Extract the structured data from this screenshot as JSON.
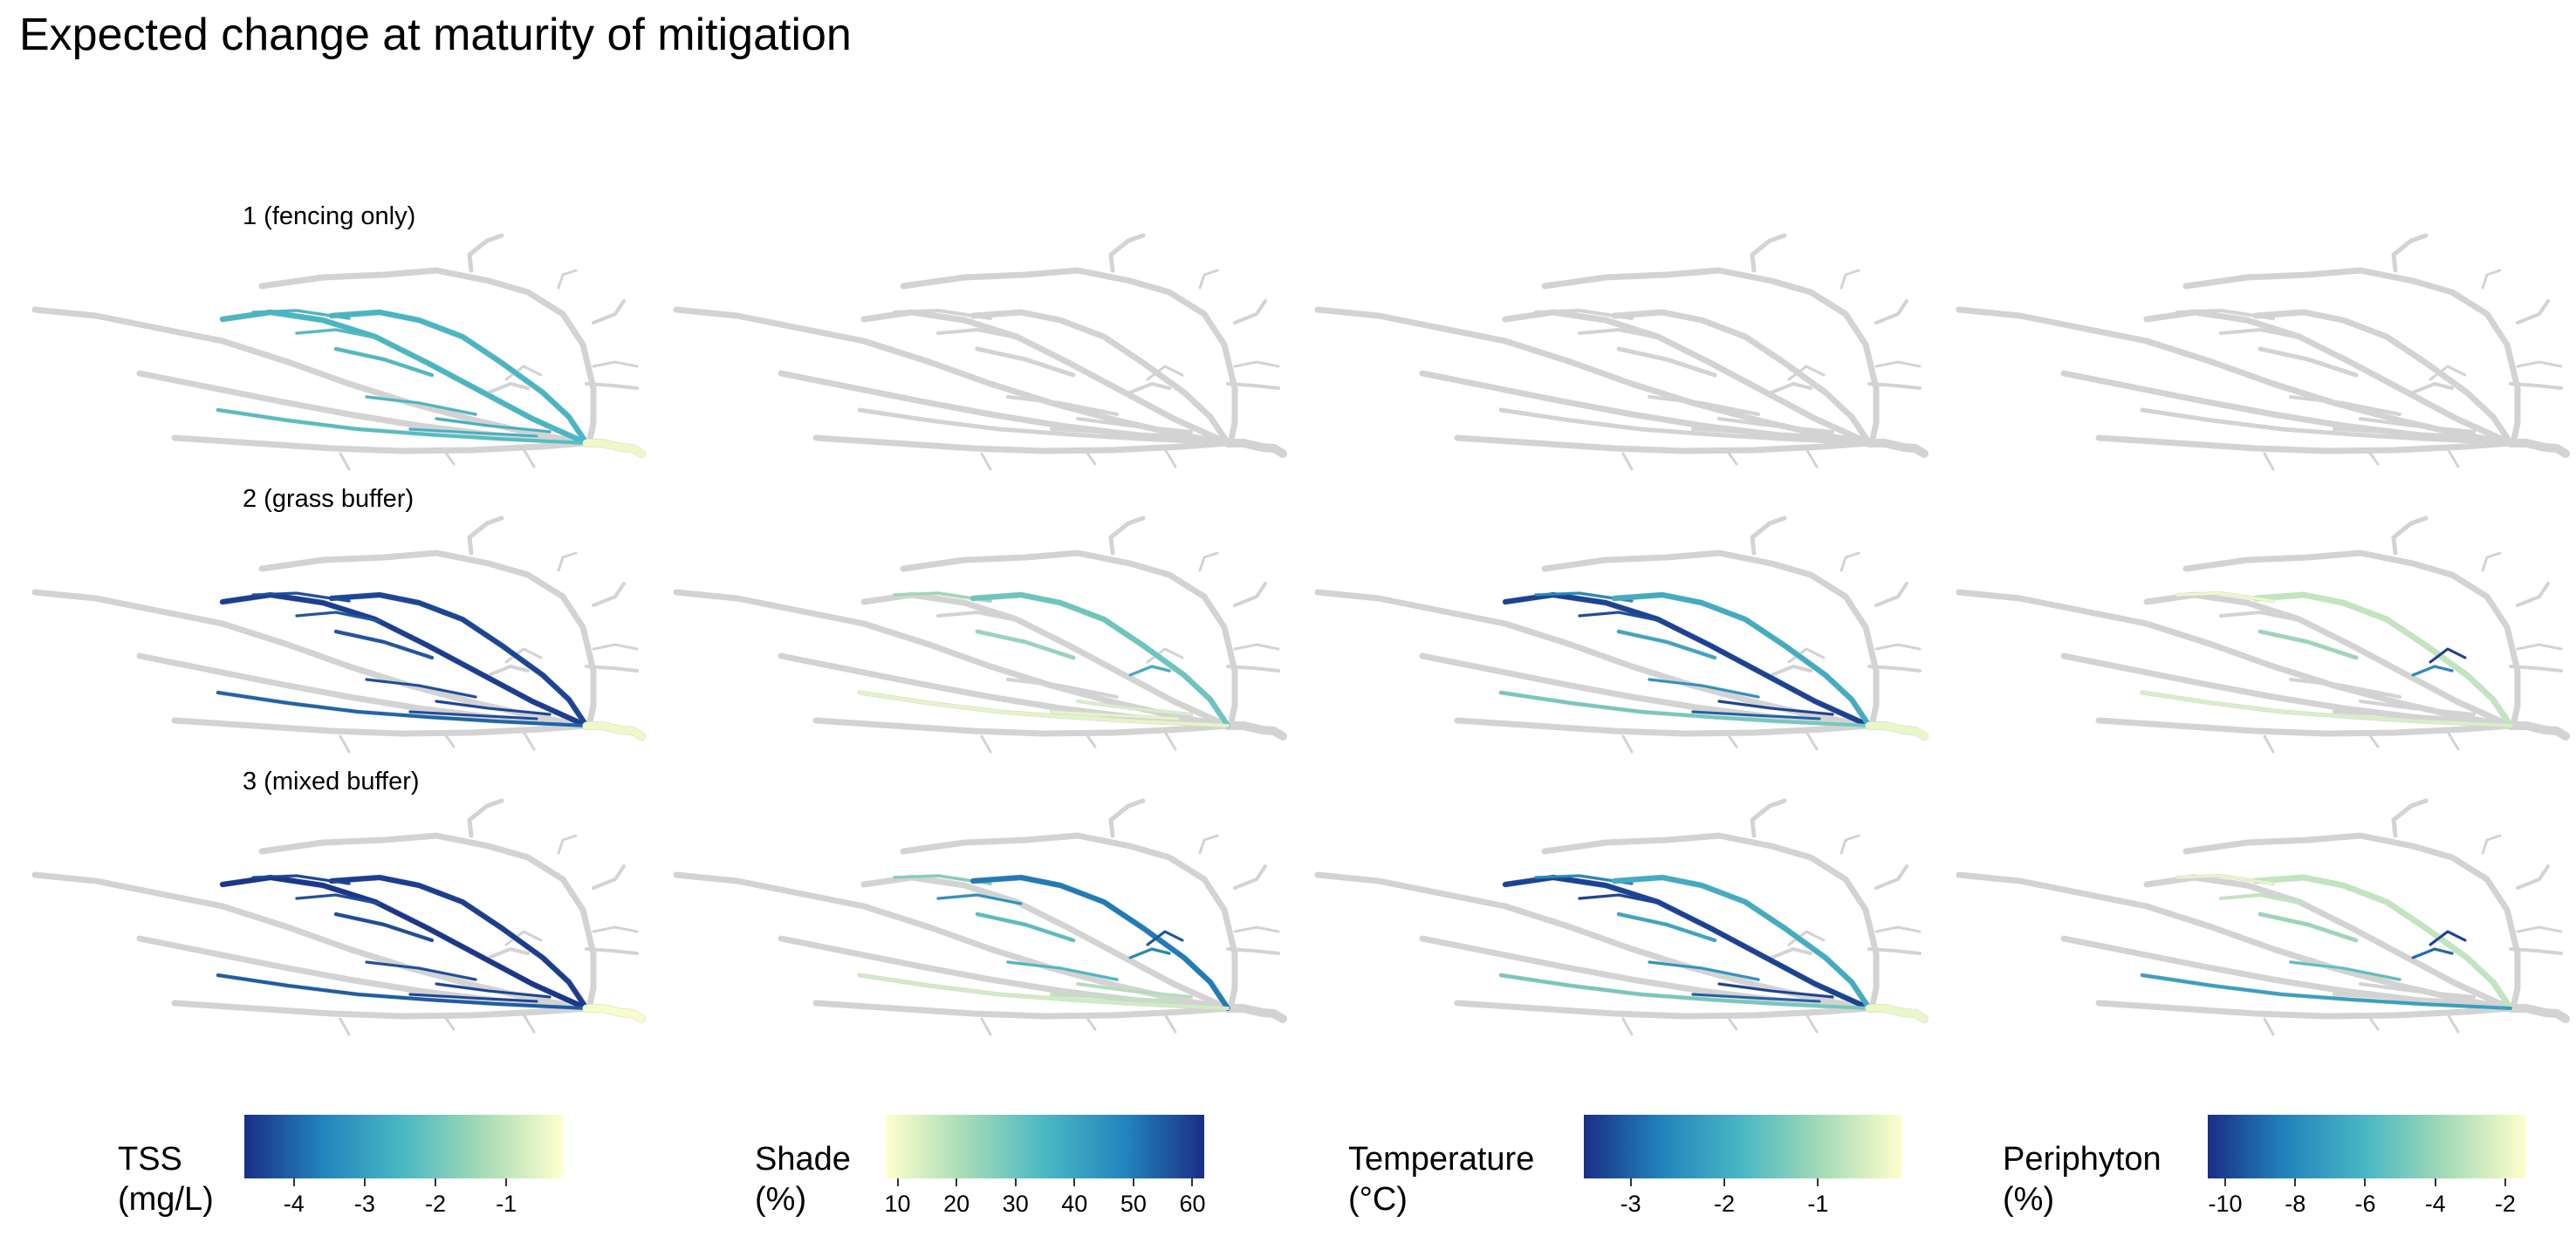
{
  "title": "Expected change at maturity of mitigation",
  "base_color": "#d3d3d3",
  "scenarios": [
    {
      "label": "1 (fencing only)"
    },
    {
      "label": "2 (grass buffer)"
    },
    {
      "label": "3 (mixed buffer)"
    }
  ],
  "variables": [
    {
      "key": "tss",
      "legend_title": "TSS\n(mg/L)",
      "colors": [
        "#1a2f86",
        "#2285bd",
        "#4ab8c3",
        "#a6dbb7",
        "#ffffcc"
      ],
      "range": [
        -4.7,
        -0.2
      ],
      "ticks": [
        "-4",
        "-3",
        "-2",
        "-1"
      ],
      "tick_values": [
        -4,
        -3,
        -2,
        -1
      ]
    },
    {
      "key": "shade",
      "legend_title": "Shade\n(%)",
      "colors": [
        "#ffffcc",
        "#a6dbb7",
        "#4ab8c3",
        "#2285bd",
        "#1a2f86"
      ],
      "range": [
        8,
        62
      ],
      "ticks": [
        "10",
        "20",
        "30",
        "40",
        "50",
        "60"
      ],
      "tick_values": [
        10,
        20,
        30,
        40,
        50,
        60
      ]
    },
    {
      "key": "temperature",
      "legend_title": "Temperature\n(°C)",
      "colors": [
        "#1a2f86",
        "#2285bd",
        "#4ab8c3",
        "#a6dbb7",
        "#ffffcc"
      ],
      "range": [
        -3.5,
        -0.1
      ],
      "ticks": [
        "-3",
        "-2",
        "-1"
      ],
      "tick_values": [
        -3,
        -2,
        -1
      ]
    },
    {
      "key": "periphyton",
      "legend_title": "Periphyton\n(%)",
      "colors": [
        "#1a2f86",
        "#2285bd",
        "#4ab8c3",
        "#a6dbb7",
        "#ffffcc"
      ],
      "range": [
        -10.5,
        -1.4
      ],
      "ticks": [
        "-10",
        "-8",
        "-6",
        "-4",
        "-2"
      ],
      "tick_values": [
        -10,
        -8,
        -6,
        -4,
        -2
      ]
    }
  ],
  "panels": [
    [
      {
        "highlights": [
          [
            "r2",
            -2.5
          ],
          [
            "r3",
            -2.5
          ],
          [
            "t2",
            -2.5
          ],
          [
            "t3",
            -2.4
          ],
          [
            "t4",
            -2.4
          ],
          [
            "r6",
            -2.3
          ],
          [
            "t8",
            -2.6
          ],
          [
            "t9",
            -2.6
          ],
          [
            "t5",
            -2.5
          ],
          [
            "outlet",
            -0.4
          ]
        ]
      },
      {
        "highlights": []
      },
      {
        "highlights": []
      },
      {
        "highlights": []
      }
    ],
    [
      {
        "highlights": [
          [
            "r2",
            -4.5
          ],
          [
            "r3",
            -4.4
          ],
          [
            "t2",
            -4.3
          ],
          [
            "t3",
            -4.2
          ],
          [
            "t4",
            -4.2
          ],
          [
            "r6",
            -4.0
          ],
          [
            "t8",
            -4.4
          ],
          [
            "t9",
            -4.3
          ],
          [
            "t5",
            -4.3
          ],
          [
            "outlet",
            -0.4
          ]
        ]
      },
      {
        "highlights": [
          [
            "t2",
            23
          ],
          [
            "t4",
            24
          ],
          [
            "r3",
            30
          ],
          [
            "t8",
            14
          ],
          [
            "t9",
            12
          ],
          [
            "t6",
            38
          ],
          [
            "r6",
            12
          ]
        ]
      },
      {
        "highlights": [
          [
            "r2",
            -3.3
          ],
          [
            "t2",
            -2.6
          ],
          [
            "t3",
            -3.2
          ],
          [
            "t4",
            -2.1
          ],
          [
            "r3",
            -2.0
          ],
          [
            "r6",
            -1.4
          ],
          [
            "t8",
            -3.3
          ],
          [
            "t9",
            -3.0
          ],
          [
            "t5",
            -2.4
          ],
          [
            "outlet",
            -0.3
          ]
        ]
      },
      {
        "highlights": [
          [
            "r3",
            -3.0
          ],
          [
            "t2",
            -1.8
          ],
          [
            "t4",
            -4.0
          ],
          [
            "r6",
            -2.4
          ],
          [
            "t6",
            -8.0
          ],
          [
            "t7",
            -10.0
          ]
        ]
      }
    ],
    [
      {
        "highlights": [
          [
            "r2",
            -4.6
          ],
          [
            "r3",
            -4.5
          ],
          [
            "t2",
            -4.4
          ],
          [
            "t3",
            -4.3
          ],
          [
            "t4",
            -4.3
          ],
          [
            "r6",
            -4.1
          ],
          [
            "t8",
            -4.4
          ],
          [
            "t9",
            -4.4
          ],
          [
            "t5",
            -4.3
          ],
          [
            "outlet",
            -0.3
          ]
        ]
      },
      {
        "highlights": [
          [
            "t2",
            27
          ],
          [
            "t3",
            45
          ],
          [
            "r3",
            50
          ],
          [
            "t4",
            33
          ],
          [
            "r6",
            15
          ],
          [
            "t8",
            20
          ],
          [
            "t9",
            18
          ],
          [
            "t6",
            48
          ],
          [
            "t7",
            56
          ],
          [
            "t5",
            35
          ]
        ]
      },
      {
        "highlights": [
          [
            "r2",
            -3.3
          ],
          [
            "t2",
            -2.6
          ],
          [
            "t3",
            -3.3
          ],
          [
            "t4",
            -2.1
          ],
          [
            "r3",
            -2.0
          ],
          [
            "r6",
            -1.4
          ],
          [
            "t8",
            -3.3
          ],
          [
            "t9",
            -3.0
          ],
          [
            "t5",
            -2.4
          ],
          [
            "outlet",
            -0.3
          ]
        ]
      },
      {
        "highlights": [
          [
            "r3",
            -3.0
          ],
          [
            "t2",
            -2.0
          ],
          [
            "t4",
            -4.0
          ],
          [
            "t3",
            -3.0
          ],
          [
            "r6",
            -7.0
          ],
          [
            "t6",
            -9.0
          ],
          [
            "t7",
            -10.0
          ],
          [
            "t5",
            -5.5
          ]
        ]
      }
    ]
  ]
}
